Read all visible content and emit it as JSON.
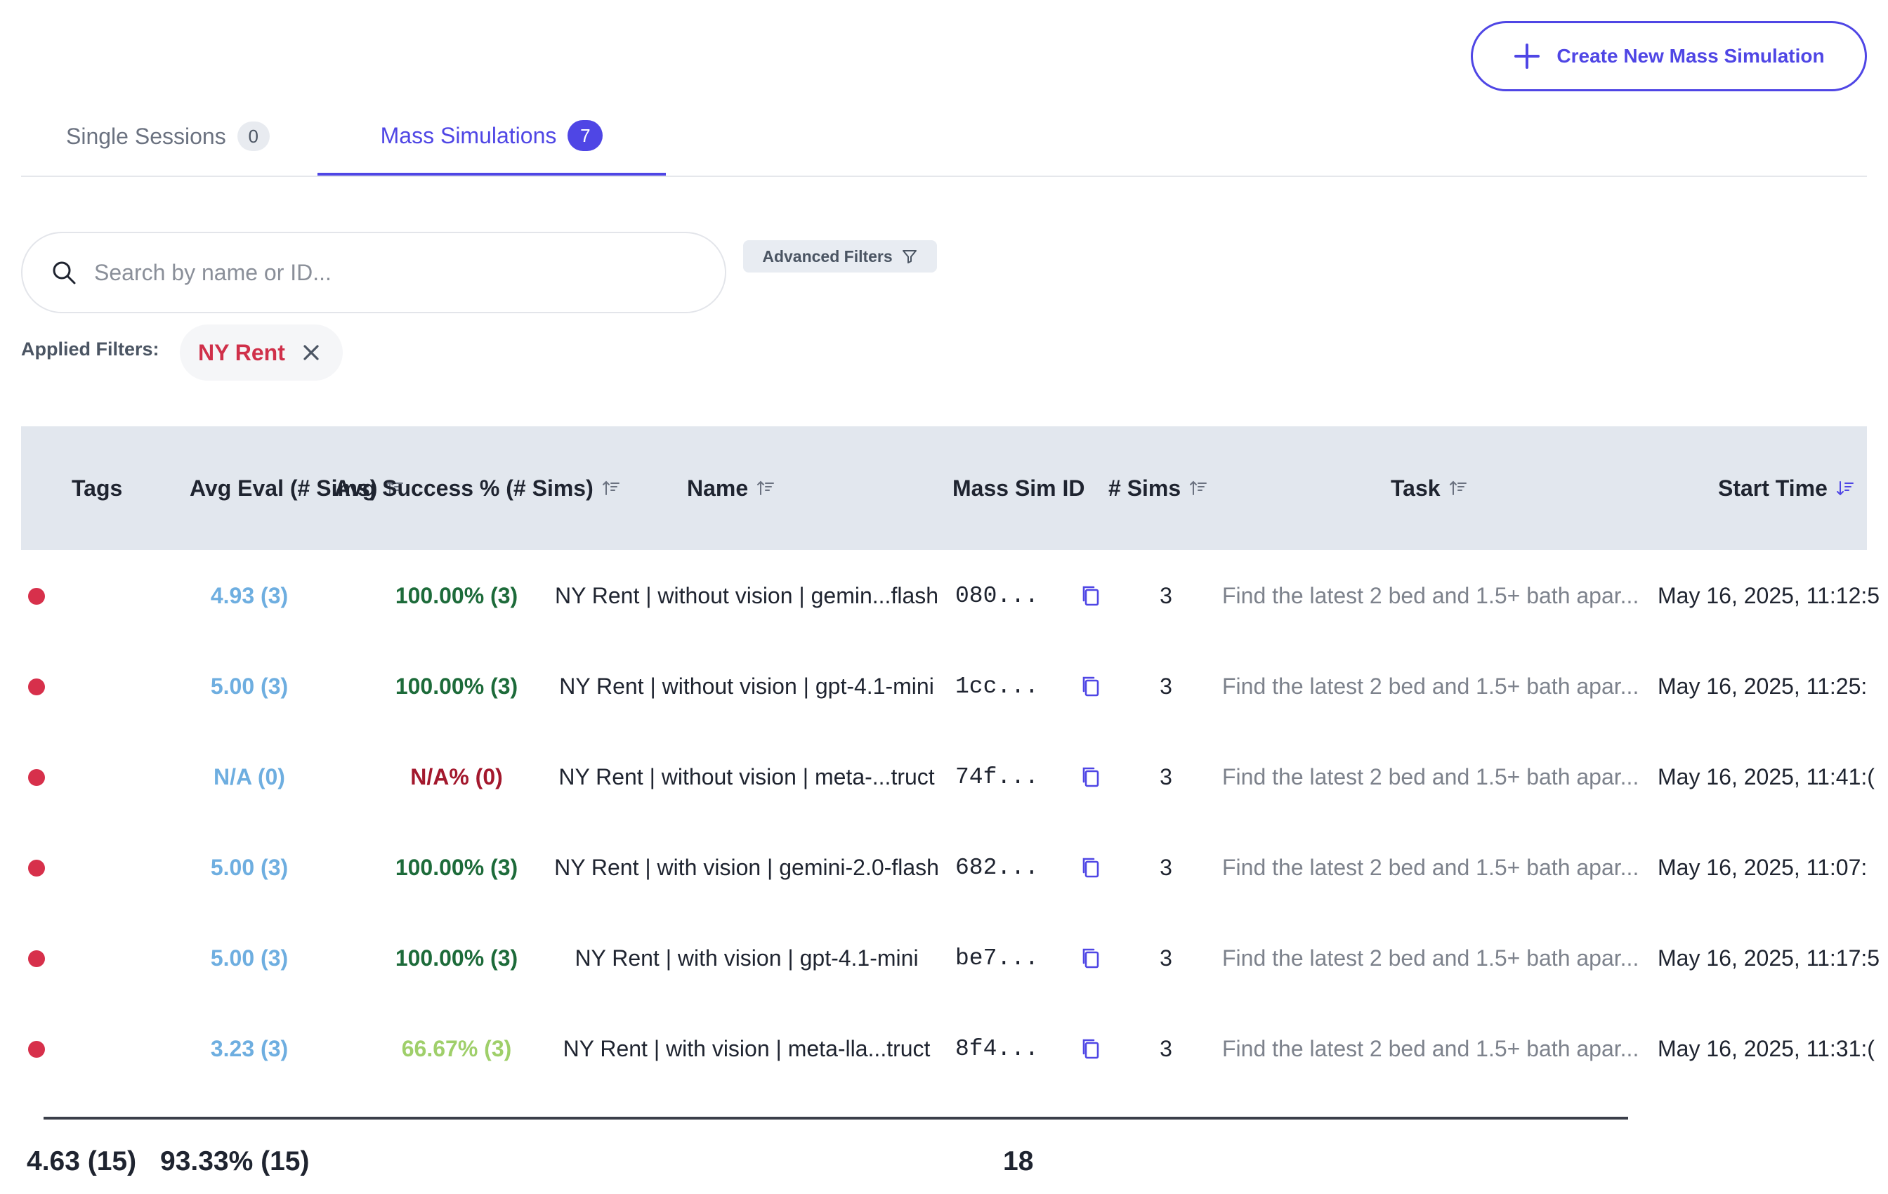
{
  "header": {
    "create_button_label": "Create New Mass Simulation"
  },
  "tabs": [
    {
      "label": "Single Sessions",
      "count": "0"
    },
    {
      "label": "Mass Simulations",
      "count": "7"
    }
  ],
  "search": {
    "placeholder": "Search by name or ID...",
    "value": ""
  },
  "advanced_filters_label": "Advanced Filters",
  "applied_filters": {
    "label": "Applied Filters:",
    "chips": [
      "NY Rent"
    ]
  },
  "table": {
    "columns": [
      "Tags",
      "Avg Eval",
      "(# Sims)",
      "Avg Success %",
      "(# Sims)",
      "Name",
      "Mass Sim ID",
      "# Sims",
      "Task",
      "Start Time"
    ],
    "rows": [
      {
        "eval": "4.93 (3)",
        "success": "100.00% (3)",
        "name": "NY Rent | without vision | gemin...flash",
        "id": "080...",
        "sims": "3",
        "task": "Find the latest 2 bed and 1.5+ bath apar...",
        "start": "May 16, 2025, 11:12:5",
        "eval_color": "#6eaee0",
        "success_color": "#1d6b3a"
      },
      {
        "eval": "5.00 (3)",
        "success": "100.00% (3)",
        "name": "NY Rent | without vision | gpt-4.1-mini",
        "id": "1cc...",
        "sims": "3",
        "task": "Find the latest 2 bed and 1.5+ bath apar...",
        "start": "May 16, 2025, 11:25:",
        "eval_color": "#6eaee0",
        "success_color": "#1d6b3a"
      },
      {
        "eval": "N/A (0)",
        "success": "N/A% (0)",
        "name": "NY Rent | without vision | meta-...truct",
        "id": "74f...",
        "sims": "3",
        "task": "Find the latest 2 bed and 1.5+ bath apar...",
        "start": "May 16, 2025, 11:41:(",
        "eval_color": "#6eaee0",
        "success_color": "#a3182d"
      },
      {
        "eval": "5.00 (3)",
        "success": "100.00% (3)",
        "name": "NY Rent | with vision | gemini-2.0-flash",
        "id": "682...",
        "sims": "3",
        "task": "Find the latest 2 bed and 1.5+ bath apar...",
        "start": "May 16, 2025, 11:07:",
        "eval_color": "#6eaee0",
        "success_color": "#1d6b3a"
      },
      {
        "eval": "5.00 (3)",
        "success": "100.00% (3)",
        "name": "NY Rent | with vision | gpt-4.1-mini",
        "id": "be7...",
        "sims": "3",
        "task": "Find the latest 2 bed and 1.5+ bath apar...",
        "start": "May 16, 2025, 11:17:5",
        "eval_color": "#6eaee0",
        "success_color": "#1d6b3a"
      },
      {
        "eval": "3.23 (3)",
        "success": "66.67% (3)",
        "name": "NY Rent | with vision | meta-lla...truct",
        "id": "8f4...",
        "sims": "3",
        "task": "Find the latest 2 bed and 1.5+ bath apar...",
        "start": "May 16, 2025, 11:31:(",
        "eval_color": "#6eaee0",
        "success_color": "#9fcf6a"
      }
    ],
    "footer": {
      "avg_eval": "4.63 (15)",
      "avg_success": "93.33% (15)",
      "total_sims": "18"
    }
  },
  "colors": {
    "accent": "#4f46e5",
    "tag_dot": "#d7304b",
    "filter_chip": "#d0304a"
  },
  "icons": [
    "plus-icon",
    "search-icon",
    "filter-funnel-icon",
    "close-icon",
    "sort-icon",
    "copy-icon"
  ]
}
